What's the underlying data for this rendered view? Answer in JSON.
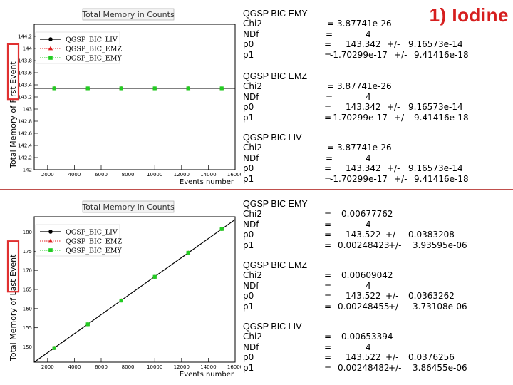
{
  "slide_title": "1) Iodine",
  "colors": {
    "title_red": "#d61f1f",
    "box_red": "#e03030",
    "divider": "#c0504d",
    "liv": "#000000",
    "emz": "#e02020",
    "emy": "#22cc22"
  },
  "chart_data": [
    {
      "type": "line",
      "title": "Total Memory in Counts",
      "ylabel_prefix": "Total Memory of ",
      "ylabel_highlight": "First Event",
      "xlabel": "Events number",
      "xlim": [
        1000,
        16000
      ],
      "ylim": [
        142,
        144.4
      ],
      "x_ticks": [
        "2000",
        "4000",
        "6000",
        "8000",
        "10000",
        "12000",
        "14000",
        "16000"
      ],
      "y_ticks": [
        "142",
        "142.2",
        "142.4",
        "142.6",
        "142.8",
        "143",
        "143.2",
        "143.4",
        "143.6",
        "143.8",
        "144",
        "144.2"
      ],
      "x": [
        2500,
        5000,
        7500,
        10000,
        12500,
        15000
      ],
      "series": [
        {
          "name": "QGSP_BIC_LIV",
          "values": [
            143.342,
            143.342,
            143.342,
            143.342,
            143.342,
            143.342
          ]
        },
        {
          "name": "QGSP_BIC_EMZ",
          "values": [
            143.342,
            143.342,
            143.342,
            143.342,
            143.342,
            143.342
          ]
        },
        {
          "name": "QGSP_BIC_EMY",
          "values": [
            143.342,
            143.342,
            143.342,
            143.342,
            143.342,
            143.342
          ]
        }
      ],
      "fit": {
        "p0": 143.342,
        "p1": 0
      },
      "grid": false,
      "legend_position": "top-left"
    },
    {
      "type": "line",
      "title": "Total Memory in Counts",
      "ylabel_prefix": "Total Memory of ",
      "ylabel_highlight": "Last Event",
      "xlabel": "Events number",
      "xlim": [
        1000,
        16000
      ],
      "ylim": [
        146,
        184
      ],
      "x_ticks": [
        "2000",
        "4000",
        "6000",
        "8000",
        "10000",
        "12000",
        "14000",
        "16000"
      ],
      "y_ticks": [
        "150",
        "155",
        "160",
        "165",
        "170",
        "175",
        "180"
      ],
      "x": [
        2500,
        5000,
        7500,
        10000,
        12500,
        15000
      ],
      "series": [
        {
          "name": "QGSP_BIC_LIV",
          "values": [
            149.7,
            155.9,
            162.1,
            168.3,
            174.6,
            180.8
          ]
        },
        {
          "name": "QGSP_BIC_EMZ",
          "values": [
            149.7,
            155.9,
            162.1,
            168.3,
            174.6,
            180.8
          ]
        },
        {
          "name": "QGSP_BIC_EMY",
          "values": [
            149.7,
            155.9,
            162.1,
            168.3,
            174.6,
            180.8
          ]
        }
      ],
      "fit": {
        "p0": 143.522,
        "p1": 0.002484
      },
      "grid": false,
      "legend_position": "top-left"
    }
  ],
  "fits": [
    {
      "title": "QGSP BIC EMY",
      "chi2_label": "Chi2",
      "chi2": "3.87741e-26",
      "ndf_label": "NDf",
      "ndf": "4",
      "p0_label": "p0",
      "p0": "143.342",
      "p0_err": "9.16573e-14",
      "p1_label": "p1",
      "p1": "-1.70299e-17",
      "p1_err": "9.41416e-18"
    },
    {
      "title": "QGSP BIC EMZ",
      "chi2_label": "Chi2",
      "chi2": "3.87741e-26",
      "ndf_label": "NDf",
      "ndf": "4",
      "p0_label": "p0",
      "p0": "143.342",
      "p0_err": "9.16573e-14",
      "p1_label": "p1",
      "p1": "-1.70299e-17",
      "p1_err": "9.41416e-18"
    },
    {
      "title": "QGSP BIC LIV",
      "chi2_label": "Chi2",
      "chi2": "3.87741e-26",
      "ndf_label": "NDf",
      "ndf": "4",
      "p0_label": "p0",
      "p0": "143.342",
      "p0_err": "9.16573e-14",
      "p1_label": "p1",
      "p1": "-1.70299e-17",
      "p1_err": "9.41416e-18"
    },
    {
      "title": "QGSP BIC EMY",
      "chi2_label": "Chi2",
      "chi2": "0.00677762",
      "ndf_label": "NDf",
      "ndf": "4",
      "p0_label": "p0",
      "p0": "143.522",
      "p0_err": "0.0383208",
      "p1_label": "p1",
      "p1": "0.00248423",
      "p1_err": "3.93595e-06"
    },
    {
      "title": "QGSP BIC EMZ",
      "chi2_label": "Chi2",
      "chi2": "0.00609042",
      "ndf_label": "NDf",
      "ndf": "4",
      "p0_label": "p0",
      "p0": "143.522",
      "p0_err": "0.0363262",
      "p1_label": "p1",
      "p1": "0.00248455",
      "p1_err": "3.73108e-06"
    },
    {
      "title": "QGSP BIC LIV",
      "chi2_label": "Chi2",
      "chi2": "0.00653394",
      "ndf_label": "NDf",
      "ndf": "4",
      "p0_label": "p0",
      "p0": "143.522",
      "p0_err": "0.0376256",
      "p1_label": "p1",
      "p1": "0.00248482",
      "p1_err": "3.86455e-06"
    }
  ],
  "symbols": {
    "eq": "=",
    "pm": "+/-"
  }
}
